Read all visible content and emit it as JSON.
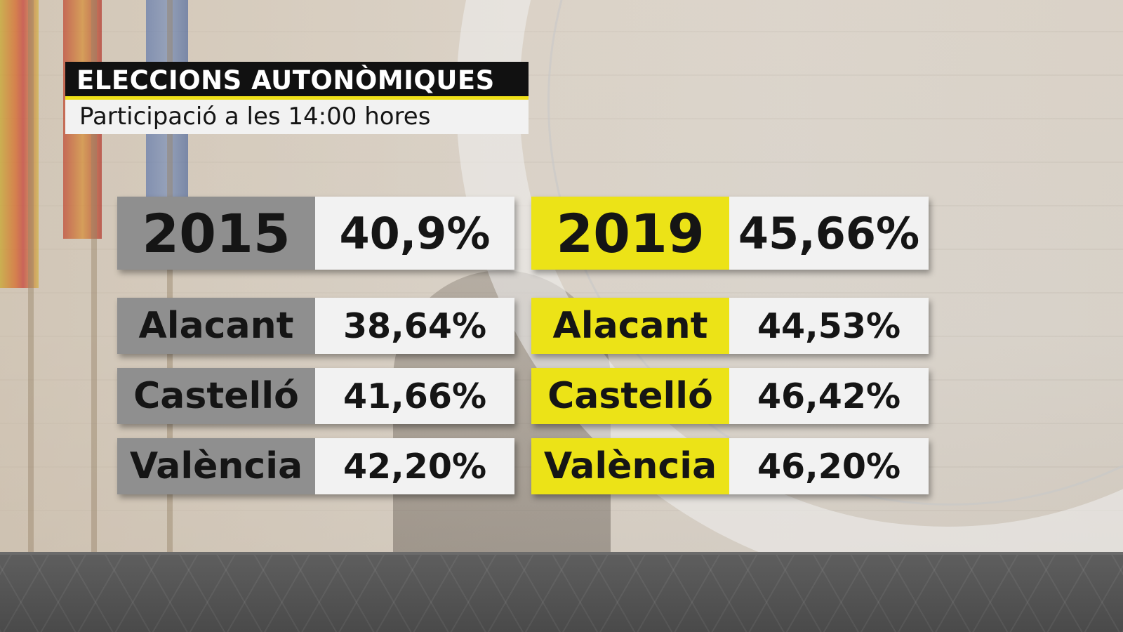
{
  "header": {
    "title": "ELECCIONS AUTONÒMIQUES",
    "subtitle": "Participació a les 14:00 hores"
  },
  "colors": {
    "title_bg": "#111111",
    "accent_yellow": "#ece317",
    "grey_label": "#8f8f8f",
    "value_bg": "#f2f2f2"
  },
  "y2015": {
    "year": "2015",
    "total": "40,9%",
    "rows": [
      {
        "label": "Alacant",
        "value": "38,64%"
      },
      {
        "label": "Castelló",
        "value": "41,66%"
      },
      {
        "label": "València",
        "value": "42,20%"
      }
    ]
  },
  "y2019": {
    "year": "2019",
    "total": "45,66%",
    "rows": [
      {
        "label": "Alacant",
        "value": "44,53%"
      },
      {
        "label": "Castelló",
        "value": "46,42%"
      },
      {
        "label": "València",
        "value": "46,20%"
      }
    ]
  }
}
